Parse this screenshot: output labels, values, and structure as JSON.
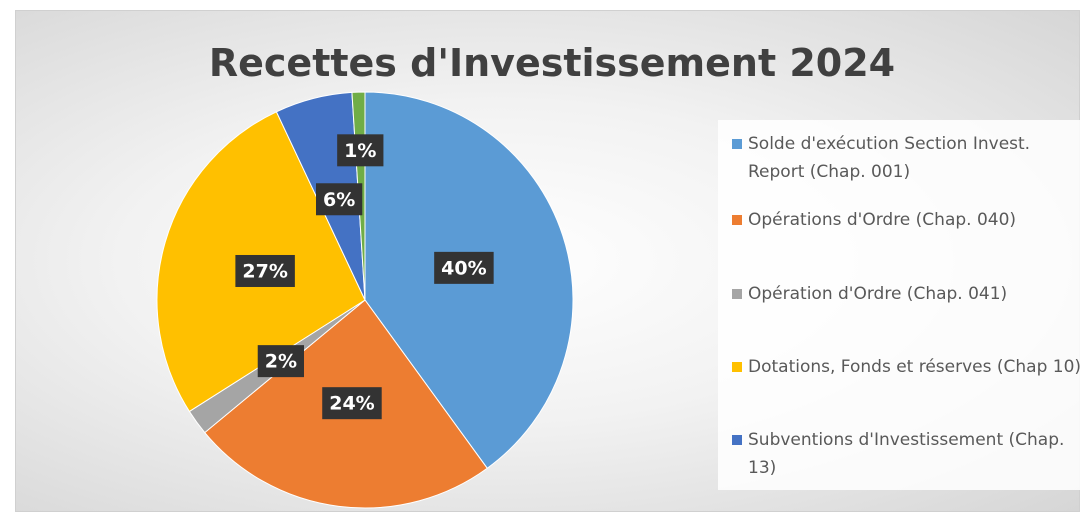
{
  "chart_data": {
    "type": "pie",
    "title": "Recettes d'Investissement 2024",
    "categories": [
      "Solde d'exécution Section Invest. Report (Chap. 001)",
      "Opérations d'Ordre (Chap. 040)",
      "Opération d'Ordre (Chap. 041)",
      "Dotations, Fonds et réserves (Chap 10)",
      "Subventions d'Investissement (Chap. 13)",
      null
    ],
    "values": [
      40,
      24,
      2,
      27,
      6,
      1
    ],
    "value_labels": [
      "40%",
      "24%",
      "2%",
      "27%",
      "6%",
      "1%"
    ],
    "colors": [
      "#5b9bd5",
      "#ed7d31",
      "#a5a5a5",
      "#ffc000",
      "#4472c4",
      "#70ad47"
    ],
    "legend": "right"
  }
}
